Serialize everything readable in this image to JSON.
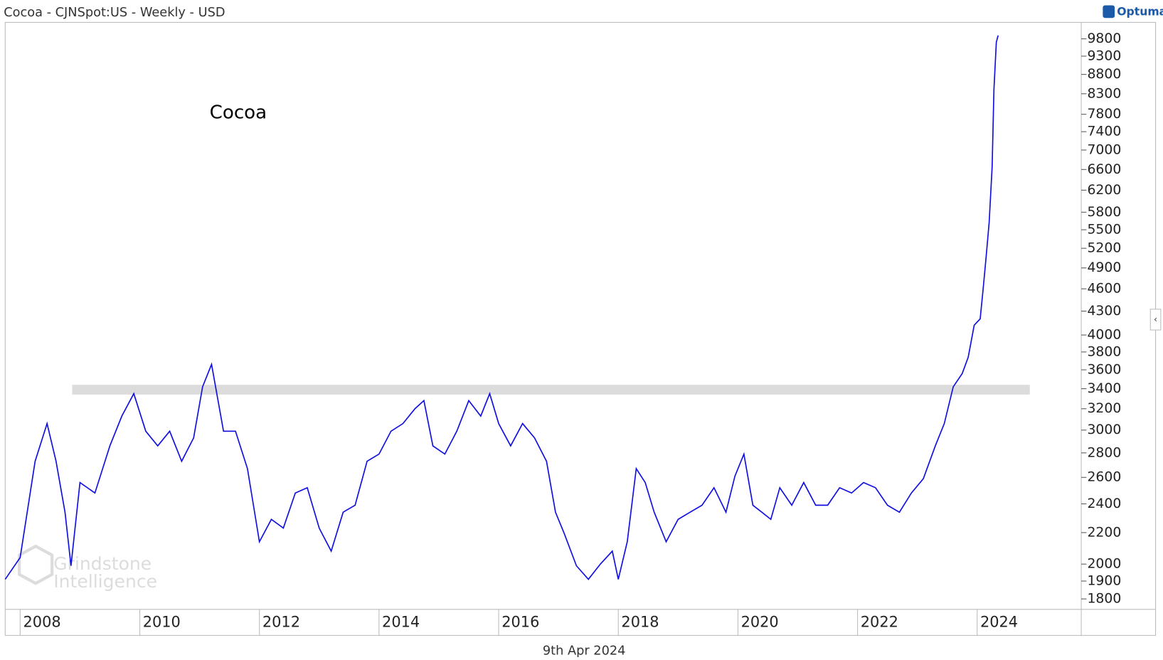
{
  "chart_data": {
    "type": "line",
    "title": "Cocoa - CJNSpot:US - Weekly - USD",
    "brand": "Optuma",
    "annotation": "Cocoa",
    "watermark": [
      "Grindstone",
      "Intelligence"
    ],
    "date_label": "9th Apr 2024",
    "color": "#1010e0",
    "log_scale": true,
    "x": [
      2007.75,
      2008.0,
      2008.25,
      2008.45,
      2008.6,
      2008.75,
      2008.85,
      2009.0,
      2009.25,
      2009.5,
      2009.7,
      2009.9,
      2010.1,
      2010.3,
      2010.5,
      2010.7,
      2010.9,
      2011.05,
      2011.2,
      2011.4,
      2011.6,
      2011.8,
      2012.0,
      2012.2,
      2012.4,
      2012.6,
      2012.8,
      2013.0,
      2013.2,
      2013.4,
      2013.6,
      2013.8,
      2014.0,
      2014.2,
      2014.4,
      2014.6,
      2014.75,
      2014.9,
      2015.1,
      2015.3,
      2015.5,
      2015.7,
      2015.85,
      2016.0,
      2016.2,
      2016.4,
      2016.6,
      2016.8,
      2016.95,
      2017.1,
      2017.3,
      2017.5,
      2017.7,
      2017.9,
      2018.0,
      2018.15,
      2018.3,
      2018.45,
      2018.6,
      2018.8,
      2019.0,
      2019.2,
      2019.4,
      2019.6,
      2019.8,
      2019.95,
      2020.1,
      2020.25,
      2020.4,
      2020.55,
      2020.7,
      2020.9,
      2021.1,
      2021.3,
      2021.5,
      2021.7,
      2021.9,
      2022.1,
      2022.3,
      2022.5,
      2022.7,
      2022.9,
      2023.1,
      2023.3,
      2023.45,
      2023.6,
      2023.75,
      2023.85,
      2023.95,
      2024.05,
      2024.1,
      2024.15,
      2024.2,
      2024.25,
      2024.28,
      2024.32,
      2024.35
    ],
    "values": [
      1910,
      2040,
      2730,
      3060,
      2730,
      2340,
      1990,
      2560,
      2480,
      2860,
      3130,
      3350,
      2990,
      2860,
      2990,
      2730,
      2930,
      3420,
      3660,
      2990,
      2990,
      2670,
      2140,
      2290,
      2230,
      2480,
      2520,
      2230,
      2080,
      2340,
      2390,
      2730,
      2790,
      2990,
      3060,
      3200,
      3280,
      2860,
      2790,
      2990,
      3280,
      3130,
      3350,
      3060,
      2860,
      3060,
      2930,
      2730,
      2340,
      2190,
      1990,
      1910,
      2000,
      2080,
      1910,
      2140,
      2670,
      2560,
      2340,
      2140,
      2290,
      2340,
      2390,
      2520,
      2340,
      2610,
      2790,
      2390,
      2340,
      2290,
      2520,
      2390,
      2560,
      2390,
      2390,
      2520,
      2480,
      2560,
      2520,
      2390,
      2340,
      2480,
      2590,
      2860,
      3060,
      3420,
      3560,
      3740,
      4120,
      4200,
      4600,
      5070,
      5620,
      6650,
      8400,
      9700,
      9900
    ],
    "band": {
      "from": 3340,
      "to": 3440,
      "x": [
        2008.87,
        2024.88
      ],
      "color": "#dcdcdc"
    },
    "xlim": [
      2007.75,
      2025.74
    ],
    "xticks": [
      2008,
      2010,
      2012,
      2014,
      2016,
      2018,
      2020,
      2022,
      2024
    ],
    "ylim": [
      1744,
      10300
    ],
    "yticks": [
      1800,
      1900,
      2000,
      2200,
      2400,
      2600,
      2800,
      3000,
      3200,
      3400,
      3600,
      3800,
      4000,
      4300,
      4600,
      4900,
      5200,
      5500,
      5800,
      6200,
      6600,
      7000,
      7400,
      7800,
      8300,
      8800,
      9300,
      9800
    ]
  }
}
